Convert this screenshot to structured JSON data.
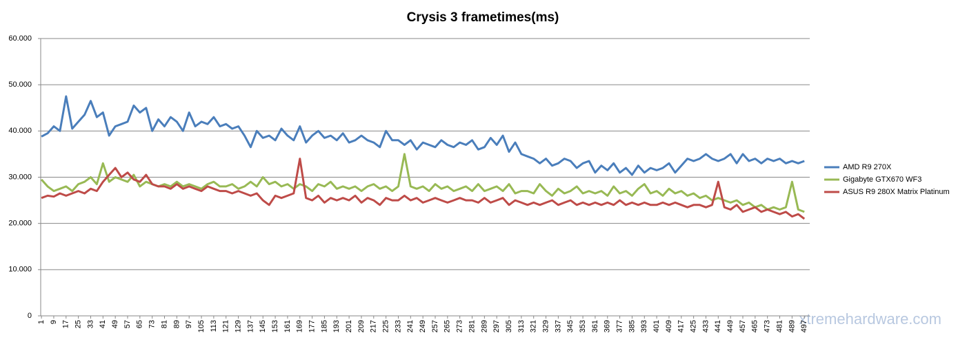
{
  "chart_data": {
    "type": "line",
    "title": "Crysis 3 frametimes(ms)",
    "x": [
      1,
      5,
      9,
      13,
      17,
      21,
      25,
      29,
      33,
      37,
      41,
      45,
      49,
      53,
      57,
      61,
      65,
      69,
      73,
      77,
      81,
      85,
      89,
      93,
      97,
      101,
      105,
      109,
      113,
      117,
      121,
      125,
      129,
      133,
      137,
      141,
      145,
      149,
      153,
      157,
      161,
      165,
      169,
      173,
      177,
      181,
      185,
      189,
      193,
      197,
      201,
      205,
      209,
      213,
      217,
      221,
      225,
      229,
      233,
      237,
      241,
      245,
      249,
      253,
      257,
      261,
      265,
      269,
      273,
      277,
      281,
      285,
      289,
      293,
      297,
      301,
      305,
      309,
      313,
      317,
      321,
      325,
      329,
      333,
      337,
      341,
      345,
      349,
      353,
      357,
      361,
      365,
      369,
      373,
      377,
      381,
      385,
      389,
      393,
      397,
      401,
      405,
      409,
      413,
      417,
      421,
      425,
      429,
      433,
      437,
      441,
      445,
      449,
      453,
      457,
      461,
      465,
      469,
      473,
      477,
      481,
      485,
      489,
      493,
      497
    ],
    "series": [
      {
        "name": "AMD R9 270X",
        "color": "#4a7ebb",
        "values": [
          38.8,
          39.5,
          41,
          40,
          47.5,
          40.5,
          42,
          43.5,
          46.5,
          43,
          44,
          39,
          41,
          41.5,
          42,
          45.5,
          44,
          45,
          40,
          42.5,
          41,
          43,
          42,
          40,
          44,
          41,
          42,
          41.5,
          43,
          41,
          41.5,
          40.5,
          41,
          39,
          36.5,
          40,
          38.5,
          39,
          38,
          40.5,
          39,
          38,
          41,
          37.5,
          39,
          40,
          38.5,
          39,
          38,
          39.5,
          37.5,
          38,
          39,
          38,
          37.5,
          36.5,
          40,
          38,
          38,
          37,
          38,
          36,
          37.5,
          37,
          36.5,
          38,
          37,
          36.5,
          37.5,
          37,
          38,
          36,
          36.5,
          38.5,
          37,
          39,
          35.5,
          37.5,
          35,
          34.5,
          34,
          33,
          34,
          32.5,
          33,
          34,
          33.5,
          32,
          33,
          33.5,
          31,
          32.5,
          31.5,
          33,
          31,
          32,
          30.5,
          32.5,
          31,
          32,
          31.5,
          32,
          33,
          31,
          32.5,
          34,
          33.5,
          34,
          35,
          34,
          33.5,
          34,
          35,
          33,
          35,
          33.5,
          34,
          33,
          34,
          33.5,
          34,
          33,
          33.5,
          33,
          33.5
        ]
      },
      {
        "name": "Gigabyte GTX670 WF3",
        "color": "#98b954",
        "values": [
          29.5,
          28,
          27,
          27.5,
          28,
          27,
          28.5,
          29,
          30,
          28.5,
          33,
          29,
          30,
          29.5,
          29,
          30.5,
          28,
          29,
          28.5,
          28,
          28.5,
          28,
          29,
          28,
          28.5,
          28,
          27.5,
          28.5,
          29,
          28,
          28,
          28.5,
          27.5,
          28,
          29,
          28,
          30,
          28.5,
          29,
          28,
          28.5,
          27.5,
          28.5,
          28,
          27,
          28.5,
          28,
          29,
          27.5,
          28,
          27.5,
          28,
          27,
          28,
          28.5,
          27.5,
          28,
          27,
          28,
          35,
          28,
          27.5,
          28,
          27,
          28.5,
          27.5,
          28,
          27,
          27.5,
          28,
          27,
          28.5,
          27,
          27.5,
          28,
          27,
          28.5,
          26.5,
          27,
          27,
          26.5,
          28.5,
          27,
          26,
          27.5,
          26.5,
          27,
          28,
          26.5,
          27,
          26.5,
          27,
          26,
          28,
          26.5,
          27,
          26,
          27.5,
          28.5,
          26.5,
          27,
          26,
          27.5,
          26.5,
          27,
          26,
          26.5,
          25.5,
          26,
          25,
          25.5,
          25,
          24.5,
          25,
          24,
          24.5,
          23.5,
          24,
          23,
          23.5,
          23,
          23.5,
          29,
          23,
          22.5
        ]
      },
      {
        "name": "ASUS R9 280X Matrix Platinum",
        "color": "#be4b48",
        "values": [
          25.5,
          26,
          25.8,
          26.5,
          26,
          26.5,
          27,
          26.5,
          27.5,
          27,
          29,
          30.5,
          32,
          30,
          31,
          29.5,
          29,
          30.5,
          28.5,
          28,
          28,
          27.5,
          28.5,
          27.5,
          28,
          27.5,
          27,
          28,
          27.5,
          27,
          27,
          26.5,
          27,
          26.5,
          26,
          26.5,
          25,
          24,
          26,
          25.5,
          26,
          26.5,
          34,
          25.5,
          25,
          26,
          24.5,
          25.5,
          25,
          25.5,
          25,
          26,
          24.5,
          25.5,
          25,
          24,
          25.5,
          25,
          25,
          26,
          25,
          25.5,
          24.5,
          25,
          25.5,
          25,
          24.5,
          25,
          25.5,
          25,
          25,
          24.5,
          25.5,
          24.5,
          25,
          25.5,
          24,
          25,
          24.5,
          24,
          24.5,
          24,
          24.5,
          25,
          24,
          24.5,
          25,
          24,
          24.5,
          24,
          24.5,
          24,
          24.5,
          24,
          25,
          24,
          24.5,
          24,
          24.5,
          24,
          24,
          24.5,
          24,
          24.5,
          24,
          23.5,
          24,
          24,
          23.5,
          24,
          29,
          23.5,
          23,
          24,
          22.5,
          23,
          23.5,
          22.5,
          23,
          22.5,
          22,
          22.5,
          21.5,
          22,
          21
        ]
      }
    ],
    "xlim": [
      0.5,
      500.5
    ],
    "xticks": [
      1,
      9,
      17,
      25,
      33,
      41,
      49,
      57,
      65,
      73,
      81,
      89,
      97,
      105,
      113,
      121,
      129,
      137,
      145,
      153,
      161,
      169,
      177,
      185,
      193,
      201,
      209,
      217,
      225,
      233,
      241,
      249,
      257,
      265,
      273,
      281,
      289,
      297,
      305,
      313,
      321,
      329,
      337,
      345,
      353,
      361,
      369,
      377,
      385,
      393,
      401,
      409,
      417,
      425,
      433,
      441,
      449,
      457,
      465,
      473,
      481,
      489,
      497
    ],
    "ylim": [
      0,
      60
    ],
    "yticks": [
      0,
      {
        "value": 10,
        "label": "10.000"
      },
      {
        "value": 20,
        "label": "20.000"
      },
      {
        "value": 30,
        "label": "30.000"
      },
      {
        "value": 40,
        "label": "40.000"
      },
      {
        "value": 50,
        "label": "50.000"
      },
      {
        "value": 60,
        "label": "60.000"
      }
    ],
    "grid": true,
    "legend": "right",
    "watermark": "xtremehardware.com"
  }
}
